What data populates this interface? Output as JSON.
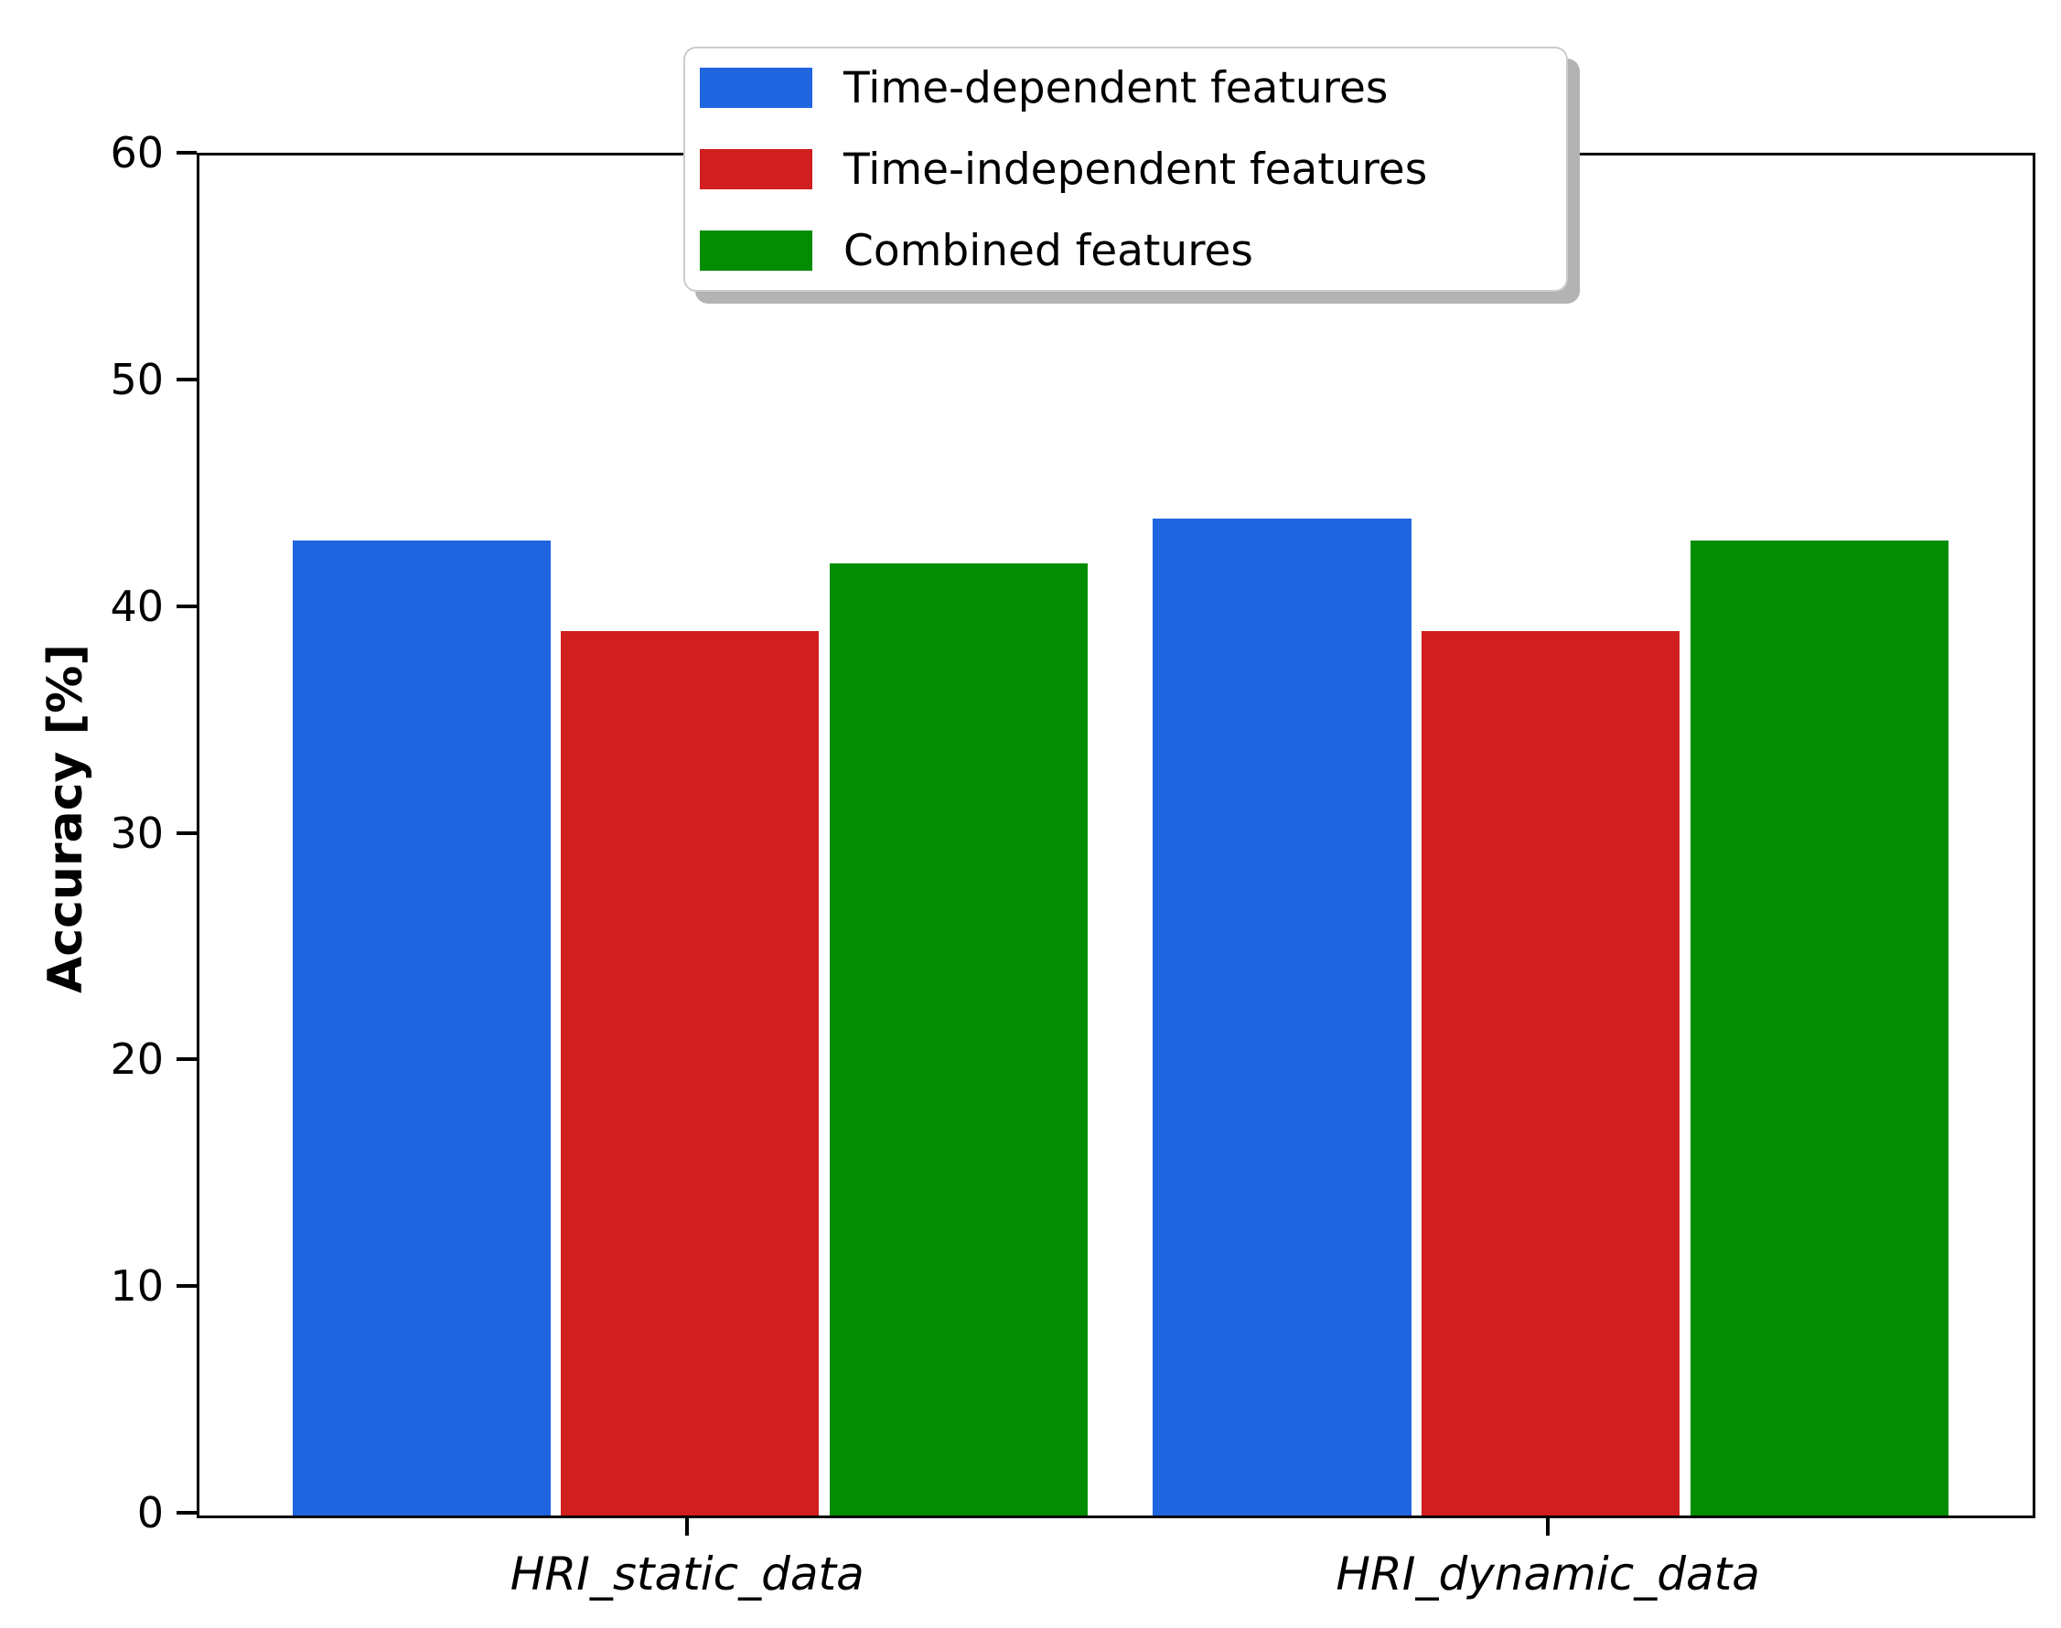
{
  "chart_data": {
    "type": "bar",
    "categories": [
      "HRI_static_data",
      "HRI_dynamic_data"
    ],
    "series": [
      {
        "name": "Time-dependent features",
        "color": "#2065e0",
        "values": [
          43,
          44
        ]
      },
      {
        "name": "Time-independent features",
        "color": "#d11e1e",
        "values": [
          39,
          39
        ]
      },
      {
        "name": "Combined features",
        "color": "#038d03",
        "values": [
          42,
          43
        ]
      }
    ],
    "xlabel": "",
    "ylabel": "Accuracy [%]",
    "ylim": [
      0,
      60
    ],
    "yticks": [
      0,
      10,
      20,
      30,
      40,
      50,
      60
    ],
    "xlim": [
      -0.57,
      1.56
    ],
    "group_positions": [
      0,
      1
    ],
    "bar_offsets": [
      -0.312,
      0,
      0.312
    ],
    "bar_width": 0.3,
    "grid": false,
    "legend_position": "upper center",
    "axis_color": "#000000",
    "background_color": "#ffffff"
  }
}
